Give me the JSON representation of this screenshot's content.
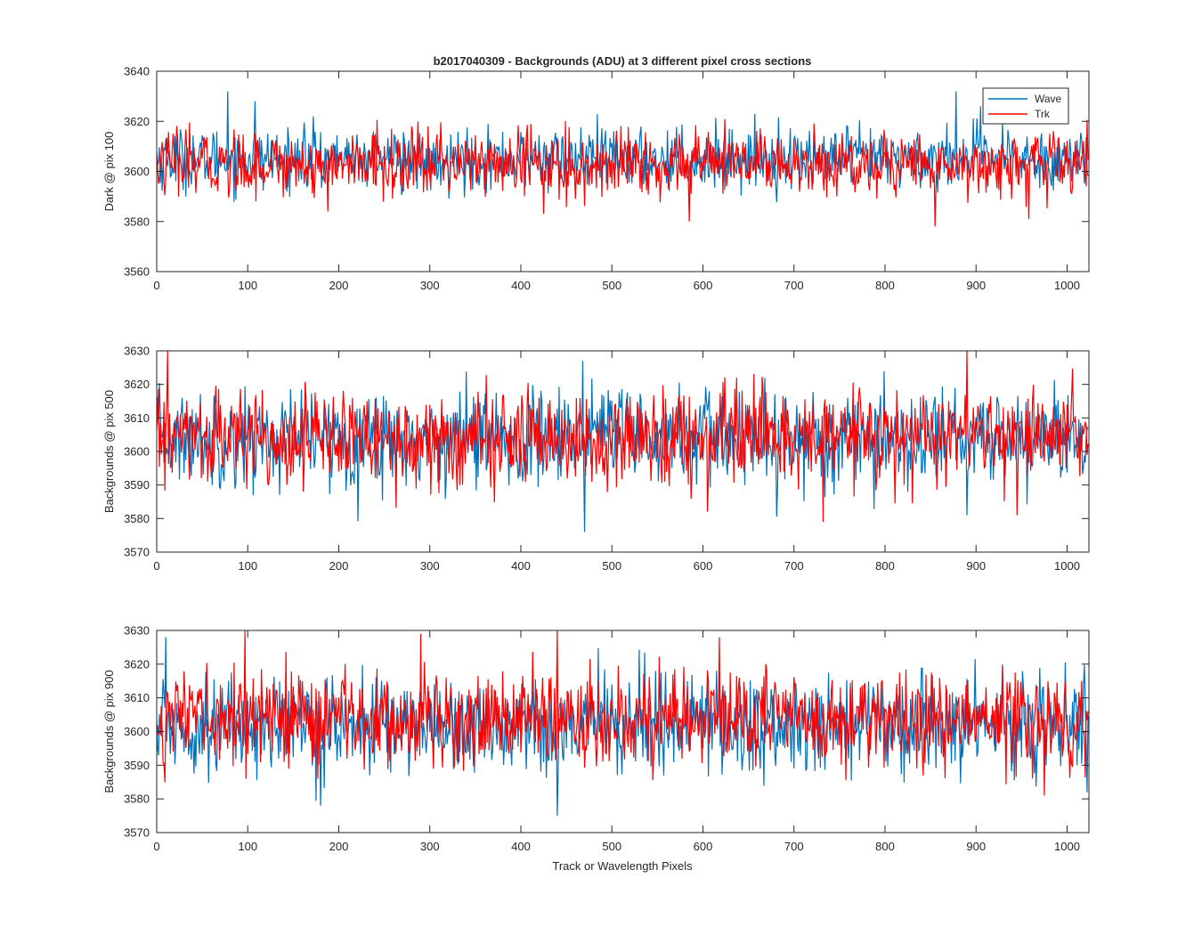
{
  "figure": {
    "title": "b2017040309 - Backgrounds (ADU) at 3 different pixel cross sections",
    "xlabel": "Track or Wavelength Pixels"
  },
  "legend": {
    "placement": "top-right of first panel",
    "entries": [
      {
        "label": "Wave",
        "color": "#0072BD"
      },
      {
        "label": "Trk",
        "color": "#FF0000"
      }
    ]
  },
  "chart_data": [
    {
      "type": "line",
      "title": "b2017040309 - Backgrounds (ADU) at 3 different pixel cross sections",
      "xlabel": "",
      "ylabel": "Dark @ pix 100",
      "xlim": [
        0,
        1024
      ],
      "ylim": [
        3560,
        3640
      ],
      "xticks": [
        0,
        100,
        200,
        300,
        400,
        500,
        600,
        700,
        800,
        900,
        1000
      ],
      "yticks": [
        3560,
        3580,
        3600,
        3620,
        3640
      ],
      "grid": false,
      "n_points": 1024,
      "series": [
        {
          "name": "Wave",
          "color": "#0072BD",
          "mean": 3605,
          "std": 6,
          "min": 3584,
          "max": 3632,
          "notable": [
            [
              78,
              3632
            ],
            [
              108,
              3628
            ],
            [
              878,
              3632
            ],
            [
              905,
              3626
            ]
          ]
        },
        {
          "name": "Trk",
          "color": "#FF0000",
          "mean": 3603,
          "std": 6.5,
          "min": 3578,
          "max": 3624,
          "notable": [
            [
              188,
              3584
            ],
            [
              585,
              3580
            ],
            [
              855,
              3578
            ],
            [
              958,
              3581
            ]
          ]
        }
      ]
    },
    {
      "type": "line",
      "xlabel": "",
      "ylabel": "Backgrounds @ pix 500",
      "xlim": [
        0,
        1024
      ],
      "ylim": [
        3570,
        3630
      ],
      "xticks": [
        0,
        100,
        200,
        300,
        400,
        500,
        600,
        700,
        800,
        900,
        1000
      ],
      "yticks": [
        3570,
        3580,
        3590,
        3600,
        3610,
        3620,
        3630
      ],
      "grid": false,
      "n_points": 1024,
      "series": [
        {
          "name": "Wave",
          "color": "#0072BD",
          "mean": 3604,
          "std": 7,
          "min": 3576,
          "max": 3627,
          "notable": [
            [
              470,
              3576
            ],
            [
              468,
              3627
            ],
            [
              890,
              3581
            ]
          ]
        },
        {
          "name": "Trk",
          "color": "#FF0000",
          "mean": 3604,
          "std": 7,
          "min": 3579,
          "max": 3630,
          "notable": [
            [
              12,
              3630
            ],
            [
              890,
              3630
            ],
            [
              732,
              3579
            ],
            [
              945,
              3581
            ]
          ]
        }
      ]
    },
    {
      "type": "line",
      "xlabel": "Track or Wavelength Pixels",
      "ylabel": "Backgrounds @ pix 900",
      "xlim": [
        0,
        1024
      ],
      "ylim": [
        3570,
        3630
      ],
      "xticks": [
        0,
        100,
        200,
        300,
        400,
        500,
        600,
        700,
        800,
        900,
        1000
      ],
      "yticks": [
        3570,
        3580,
        3590,
        3600,
        3610,
        3620,
        3630
      ],
      "grid": false,
      "n_points": 1024,
      "series": [
        {
          "name": "Wave",
          "color": "#0072BD",
          "mean": 3602,
          "std": 7,
          "min": 3575,
          "max": 3628,
          "notable": [
            [
              10,
              3628
            ],
            [
              180,
              3578
            ],
            [
              440,
              3575
            ],
            [
              1022,
              3582
            ]
          ]
        },
        {
          "name": "Trk",
          "color": "#FF0000",
          "mean": 3604,
          "std": 7,
          "min": 3581,
          "max": 3630,
          "notable": [
            [
              97,
              3630
            ],
            [
              290,
              3629
            ],
            [
              440,
              3630
            ],
            [
              618,
              3628
            ],
            [
              975,
              3581
            ]
          ]
        }
      ]
    }
  ]
}
